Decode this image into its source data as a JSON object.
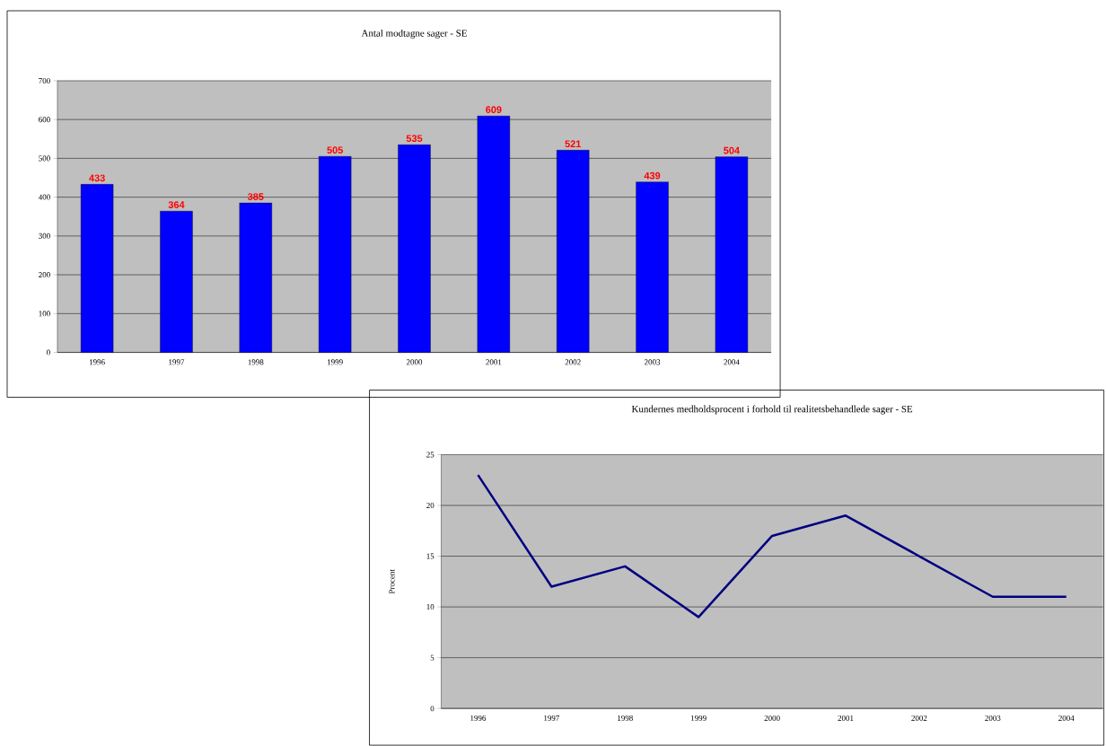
{
  "chart_data": [
    {
      "type": "bar",
      "title": "Antal modtagne sager - SE",
      "categories": [
        "1996",
        "1997",
        "1998",
        "1999",
        "2000",
        "2001",
        "2002",
        "2003",
        "2004"
      ],
      "values": [
        433,
        364,
        385,
        505,
        535,
        609,
        521,
        439,
        504
      ],
      "color": "#0000ff",
      "ylim": [
        0,
        700
      ],
      "yticks": [
        0,
        100,
        200,
        300,
        400,
        500,
        600,
        700
      ],
      "grid": "y",
      "data_labels": true
    },
    {
      "type": "line",
      "title": "Kundernes medholdsprocent i forhold til realitetsbehandlede sager - SE",
      "ylabel": "Procent",
      "categories": [
        "1996",
        "1997",
        "1998",
        "1999",
        "2000",
        "2001",
        "2002",
        "2003",
        "2004"
      ],
      "values": [
        23,
        12,
        14,
        9,
        17,
        19,
        15,
        11,
        11
      ],
      "color": "#000080",
      "ylim": [
        0,
        25
      ],
      "yticks": [
        0,
        5,
        10,
        15,
        20,
        25
      ],
      "grid": "y"
    }
  ]
}
